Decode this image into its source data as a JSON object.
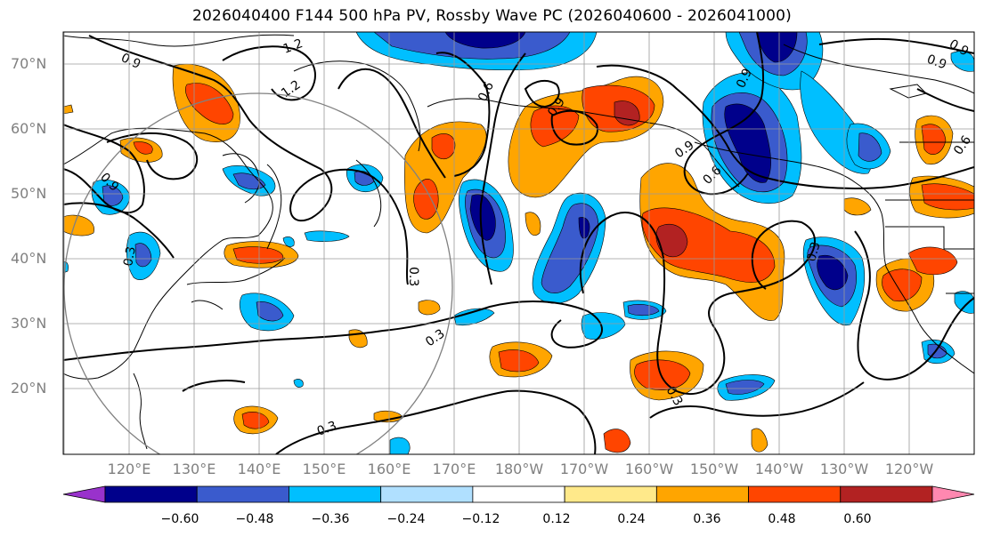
{
  "title": "2026040400 F144 500 hPa PV, Rossby Wave PC (2026040600 - 2026041000)",
  "lat_labels": [
    "70°N",
    "60°N",
    "50°N",
    "40°N",
    "30°N",
    "20°N"
  ],
  "lon_labels": [
    "120°E",
    "130°E",
    "140°E",
    "150°E",
    "160°E",
    "170°E",
    "180°W",
    "170°W",
    "160°W",
    "150°W",
    "140°W",
    "130°W",
    "120°W"
  ],
  "colorbar": {
    "colors": [
      "#9932cc",
      "#00008b",
      "#3a5bcd",
      "#00bfff",
      "#b0e0ff",
      "#ffffff",
      "#ffe98a",
      "#ffa500",
      "#ff4500",
      "#b22222",
      "#ff88b0"
    ],
    "tick_labels": [
      "−0.60",
      "−0.48",
      "−0.36",
      "−0.24",
      "−0.12",
      "0.12",
      "0.24",
      "0.36",
      "0.48",
      "0.60"
    ]
  },
  "contour_labels": [
    "0.9",
    "1.2",
    "1.2",
    "0.6",
    "0.9",
    "0.9",
    "0.9",
    "0.9",
    "0.6",
    "0.6",
    "0.9",
    "0.3",
    "0.3",
    "0.3",
    "0.3",
    "0.3",
    "0.3",
    "0.9"
  ]
}
